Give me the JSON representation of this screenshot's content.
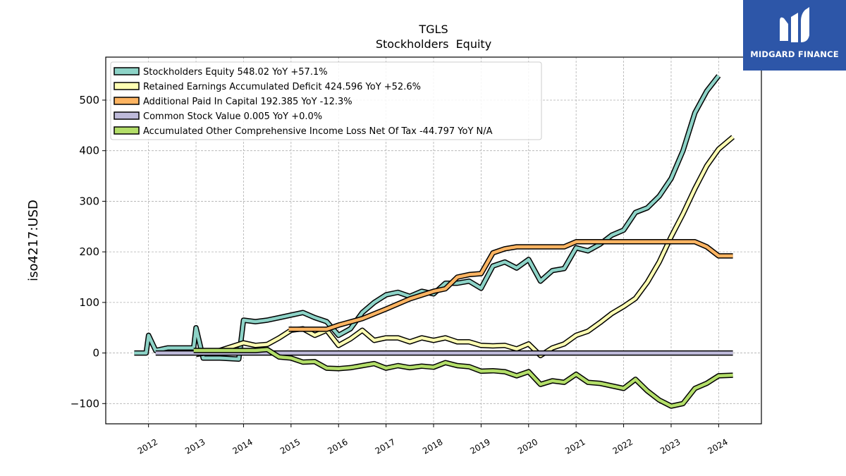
{
  "brand": {
    "name": "MIDGARD FINANCE",
    "background": "#2d56a8"
  },
  "chart_data": {
    "type": "line",
    "title": "TGLS",
    "subtitle": "Stockholders  Equity",
    "ylabel": "iso4217:USD",
    "xlabel": "",
    "xlim": [
      2011.1,
      2024.9
    ],
    "ylim": [
      -140,
      585
    ],
    "yticks": [
      -100,
      0,
      100,
      200,
      300,
      400,
      500
    ],
    "ytick_labels": [
      "−100",
      "0",
      "100",
      "200",
      "300",
      "400",
      "500"
    ],
    "xticks": [
      2012,
      2013,
      2014,
      2015,
      2016,
      2017,
      2018,
      2019,
      2020,
      2021,
      2022,
      2023,
      2024
    ],
    "xtick_labels": [
      "2012",
      "2013",
      "2014",
      "2015",
      "2016",
      "2017",
      "2018",
      "2019",
      "2020",
      "2021",
      "2022",
      "2023",
      "2024"
    ],
    "grid": true,
    "legend_position": "top-left",
    "series": [
      {
        "name": "Stockholders Equity  548.02 YoY +57.1%",
        "color": "#8dd3c7",
        "points": [
          [
            2011.7,
            0
          ],
          [
            2011.95,
            0
          ],
          [
            2012.0,
            35
          ],
          [
            2012.15,
            5
          ],
          [
            2012.4,
            10
          ],
          [
            2012.95,
            10
          ],
          [
            2013.0,
            50
          ],
          [
            2013.15,
            -10
          ],
          [
            2013.5,
            -10
          ],
          [
            2013.9,
            -12
          ],
          [
            2014.0,
            65
          ],
          [
            2014.25,
            62
          ],
          [
            2014.5,
            65
          ],
          [
            2014.75,
            70
          ],
          [
            2015.0,
            75
          ],
          [
            2015.25,
            80
          ],
          [
            2015.5,
            70
          ],
          [
            2015.75,
            62
          ],
          [
            2016.0,
            35
          ],
          [
            2016.25,
            48
          ],
          [
            2016.5,
            80
          ],
          [
            2016.75,
            100
          ],
          [
            2017.0,
            115
          ],
          [
            2017.25,
            120
          ],
          [
            2017.5,
            112
          ],
          [
            2017.75,
            122
          ],
          [
            2018.0,
            117
          ],
          [
            2018.25,
            138
          ],
          [
            2018.5,
            138
          ],
          [
            2018.75,
            142
          ],
          [
            2019.0,
            128
          ],
          [
            2019.25,
            172
          ],
          [
            2019.5,
            180
          ],
          [
            2019.75,
            168
          ],
          [
            2020.0,
            185
          ],
          [
            2020.25,
            142
          ],
          [
            2020.5,
            163
          ],
          [
            2020.75,
            167
          ],
          [
            2021.0,
            208
          ],
          [
            2021.25,
            202
          ],
          [
            2021.5,
            215
          ],
          [
            2021.75,
            233
          ],
          [
            2022.0,
            243
          ],
          [
            2022.25,
            278
          ],
          [
            2022.5,
            287
          ],
          [
            2022.75,
            310
          ],
          [
            2023.0,
            345
          ],
          [
            2023.25,
            400
          ],
          [
            2023.5,
            475
          ],
          [
            2023.75,
            518
          ],
          [
            2024.0,
            548
          ]
        ]
      },
      {
        "name": "Retained Earnings Accumulated Deficit  424.596 YoY +52.6%",
        "color": "#ffffb3",
        "points": [
          [
            2013.0,
            -3
          ],
          [
            2013.5,
            5
          ],
          [
            2014.0,
            20
          ],
          [
            2014.25,
            15
          ],
          [
            2014.5,
            17
          ],
          [
            2014.75,
            30
          ],
          [
            2015.0,
            45
          ],
          [
            2015.25,
            48
          ],
          [
            2015.5,
            35
          ],
          [
            2015.75,
            45
          ],
          [
            2016.0,
            15
          ],
          [
            2016.25,
            28
          ],
          [
            2016.5,
            45
          ],
          [
            2016.75,
            25
          ],
          [
            2017.0,
            30
          ],
          [
            2017.25,
            30
          ],
          [
            2017.5,
            22
          ],
          [
            2017.75,
            30
          ],
          [
            2018.0,
            25
          ],
          [
            2018.25,
            30
          ],
          [
            2018.5,
            22
          ],
          [
            2018.75,
            22
          ],
          [
            2019.0,
            15
          ],
          [
            2019.25,
            14
          ],
          [
            2019.5,
            15
          ],
          [
            2019.75,
            8
          ],
          [
            2020.0,
            18
          ],
          [
            2020.25,
            -5
          ],
          [
            2020.5,
            10
          ],
          [
            2020.75,
            18
          ],
          [
            2021.0,
            35
          ],
          [
            2021.25,
            43
          ],
          [
            2021.5,
            60
          ],
          [
            2021.75,
            78
          ],
          [
            2022.0,
            92
          ],
          [
            2022.25,
            108
          ],
          [
            2022.5,
            140
          ],
          [
            2022.75,
            180
          ],
          [
            2023.0,
            230
          ],
          [
            2023.25,
            275
          ],
          [
            2023.5,
            325
          ],
          [
            2023.75,
            370
          ],
          [
            2024.0,
            403
          ],
          [
            2024.3,
            427
          ]
        ]
      },
      {
        "name": "Additional Paid In Capital  192.385 YoY -12.3%",
        "color": "#fdb462",
        "points": [
          [
            2014.95,
            47
          ],
          [
            2015.75,
            47
          ],
          [
            2016.0,
            55
          ],
          [
            2016.5,
            68
          ],
          [
            2017.0,
            87
          ],
          [
            2017.5,
            107
          ],
          [
            2018.0,
            122
          ],
          [
            2018.25,
            127
          ],
          [
            2018.5,
            150
          ],
          [
            2018.75,
            155
          ],
          [
            2019.0,
            157
          ],
          [
            2019.25,
            198
          ],
          [
            2019.5,
            206
          ],
          [
            2019.75,
            210
          ],
          [
            2020.0,
            210
          ],
          [
            2020.75,
            210
          ],
          [
            2021.0,
            220
          ],
          [
            2023.5,
            220
          ],
          [
            2023.75,
            210
          ],
          [
            2024.0,
            192
          ],
          [
            2024.3,
            192
          ]
        ]
      },
      {
        "name": "Common Stock Value  0.005 YoY +0.0%",
        "color": "#bebada",
        "points": [
          [
            2012.15,
            0
          ],
          [
            2024.3,
            0
          ]
        ]
      },
      {
        "name": "Accumulated Other Comprehensive Income Loss Net Of Tax  -44.797 YoY N/A",
        "color": "#b3de69",
        "points": [
          [
            2012.95,
            5
          ],
          [
            2013.5,
            5
          ],
          [
            2014.0,
            5
          ],
          [
            2014.25,
            5
          ],
          [
            2014.5,
            7
          ],
          [
            2014.75,
            -8
          ],
          [
            2015.0,
            -10
          ],
          [
            2015.25,
            -18
          ],
          [
            2015.5,
            -17
          ],
          [
            2015.75,
            -30
          ],
          [
            2016.0,
            -31
          ],
          [
            2016.25,
            -29
          ],
          [
            2016.5,
            -25
          ],
          [
            2016.75,
            -21
          ],
          [
            2017.0,
            -30
          ],
          [
            2017.25,
            -25
          ],
          [
            2017.5,
            -29
          ],
          [
            2017.75,
            -26
          ],
          [
            2018.0,
            -28
          ],
          [
            2018.25,
            -19
          ],
          [
            2018.5,
            -25
          ],
          [
            2018.75,
            -27
          ],
          [
            2019.0,
            -36
          ],
          [
            2019.25,
            -35
          ],
          [
            2019.5,
            -37
          ],
          [
            2019.75,
            -45
          ],
          [
            2020.0,
            -37
          ],
          [
            2020.25,
            -62
          ],
          [
            2020.5,
            -55
          ],
          [
            2020.75,
            -58
          ],
          [
            2021.0,
            -42
          ],
          [
            2021.25,
            -58
          ],
          [
            2021.5,
            -60
          ],
          [
            2021.75,
            -65
          ],
          [
            2022.0,
            -70
          ],
          [
            2022.25,
            -52
          ],
          [
            2022.5,
            -75
          ],
          [
            2022.75,
            -93
          ],
          [
            2023.0,
            -105
          ],
          [
            2023.25,
            -100
          ],
          [
            2023.5,
            -70
          ],
          [
            2023.75,
            -60
          ],
          [
            2024.0,
            -45
          ],
          [
            2024.3,
            -44
          ]
        ]
      }
    ]
  }
}
